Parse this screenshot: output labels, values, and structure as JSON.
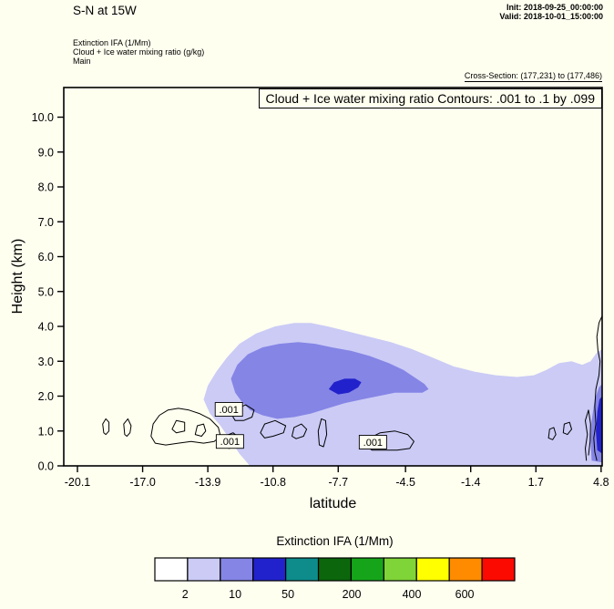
{
  "header": {
    "title": "S-N at 15W",
    "init_label": "Init: 2018-09-25_00:00:00",
    "valid_label": "Valid: 2018-10-01_15:00:00",
    "subtitle_lines": [
      "Extinction IFA  (1/Mm)",
      "Cloud + Ice water mixing ratio  (g/kg)",
      "Main"
    ],
    "cross_section": "Cross-Section: (177,231) to (177,486)"
  },
  "chart_data": {
    "type": "heatmap",
    "subtype": "filled-contour-vertical-cross-section",
    "title": "Cloud + Ice water mixing ratio Contours: .001 to .1 by .099",
    "xlabel": "latitude",
    "ylabel": "Height (km)",
    "xlim": [
      -20.75,
      4.85
    ],
    "ylim": [
      0,
      10.85
    ],
    "x_ticks": [
      -20.1,
      -17.0,
      -13.9,
      -10.8,
      -7.7,
      -4.5,
      -1.4,
      1.7,
      4.8
    ],
    "y_ticks": [
      0.0,
      1.0,
      2.0,
      3.0,
      4.0,
      5.0,
      6.0,
      7.0,
      8.0,
      9.0,
      10.0
    ],
    "grid": false,
    "background_color": "#fffff0",
    "contour_levels_gkg": [
      0.001,
      0.1
    ],
    "regions": [
      {
        "name": "extinction-2-10",
        "value_range": "2 to 10 (1/Mm)",
        "color": "#cbcbf6",
        "points": [
          [
            -11.9,
            0
          ],
          [
            -12.4,
            0.35
          ],
          [
            -12.9,
            0.8
          ],
          [
            -13.3,
            1.15
          ],
          [
            -13.8,
            1.5
          ],
          [
            -14.1,
            1.9
          ],
          [
            -13.9,
            2.3
          ],
          [
            -13.5,
            2.7
          ],
          [
            -13.0,
            3.1
          ],
          [
            -12.4,
            3.5
          ],
          [
            -11.6,
            3.8
          ],
          [
            -10.7,
            4.0
          ],
          [
            -9.8,
            4.1
          ],
          [
            -9.0,
            4.1
          ],
          [
            -8.2,
            4.0
          ],
          [
            -7.2,
            3.85
          ],
          [
            -6.2,
            3.7
          ],
          [
            -5.2,
            3.55
          ],
          [
            -4.2,
            3.35
          ],
          [
            -3.2,
            3.1
          ],
          [
            -2.2,
            2.85
          ],
          [
            -1.2,
            2.7
          ],
          [
            -0.2,
            2.6
          ],
          [
            0.8,
            2.55
          ],
          [
            1.6,
            2.6
          ],
          [
            2.2,
            2.75
          ],
          [
            2.8,
            2.95
          ],
          [
            3.4,
            3.0
          ],
          [
            3.9,
            2.9
          ],
          [
            4.3,
            3.0
          ],
          [
            4.6,
            3.25
          ],
          [
            4.85,
            3.35
          ],
          [
            4.85,
            0
          ]
        ]
      },
      {
        "name": "extinction-10-50",
        "value_range": "10 to 50 (1/Mm)",
        "color": "#8585e6",
        "points": [
          [
            -12.3,
            1.85
          ],
          [
            -12.6,
            2.1
          ],
          [
            -12.8,
            2.5
          ],
          [
            -12.5,
            2.9
          ],
          [
            -12.0,
            3.2
          ],
          [
            -11.3,
            3.4
          ],
          [
            -10.5,
            3.5
          ],
          [
            -9.6,
            3.55
          ],
          [
            -8.8,
            3.5
          ],
          [
            -8.0,
            3.4
          ],
          [
            -7.1,
            3.3
          ],
          [
            -6.2,
            3.15
          ],
          [
            -5.3,
            2.95
          ],
          [
            -4.6,
            2.75
          ],
          [
            -4.1,
            2.55
          ],
          [
            -3.6,
            2.35
          ],
          [
            -3.4,
            2.2
          ],
          [
            -3.7,
            2.1
          ],
          [
            -4.3,
            2.1
          ],
          [
            -5.0,
            2.1
          ],
          [
            -5.8,
            2.0
          ],
          [
            -6.6,
            1.9
          ],
          [
            -7.4,
            1.8
          ],
          [
            -8.2,
            1.65
          ],
          [
            -9.0,
            1.5
          ],
          [
            -9.8,
            1.4
          ],
          [
            -10.6,
            1.35
          ],
          [
            -11.3,
            1.45
          ],
          [
            -11.9,
            1.6
          ]
        ]
      },
      {
        "name": "extinction-50-200",
        "value_range": "50 to 200 (1/Mm)",
        "color": "#2222cc",
        "points": [
          [
            -8.15,
            2.2
          ],
          [
            -7.9,
            2.4
          ],
          [
            -7.4,
            2.5
          ],
          [
            -6.9,
            2.5
          ],
          [
            -6.6,
            2.4
          ],
          [
            -6.75,
            2.25
          ],
          [
            -7.2,
            2.1
          ],
          [
            -7.7,
            2.05
          ]
        ]
      },
      {
        "name": "extinction-10-50-right-edge",
        "value_range": "10 to 50 (1/Mm)",
        "color": "#8585e6",
        "points": [
          [
            4.35,
            0.15
          ],
          [
            4.3,
            0.7
          ],
          [
            4.35,
            1.3
          ],
          [
            4.5,
            1.9
          ],
          [
            4.7,
            2.25
          ],
          [
            4.85,
            2.35
          ],
          [
            4.85,
            0.1
          ]
        ]
      },
      {
        "name": "extinction-50-200-right-edge",
        "value_range": "50 to 200 (1/Mm)",
        "color": "#2222cc",
        "points": [
          [
            4.62,
            0.45
          ],
          [
            4.55,
            1.0
          ],
          [
            4.62,
            1.55
          ],
          [
            4.72,
            1.9
          ],
          [
            4.85,
            2.0
          ],
          [
            4.85,
            0.35
          ]
        ]
      }
    ],
    "contour_lines": [
      {
        "closed": true,
        "points": [
          [
            -18.85,
            0.95
          ],
          [
            -18.9,
            1.2
          ],
          [
            -18.75,
            1.35
          ],
          [
            -18.6,
            1.25
          ],
          [
            -18.6,
            1.0
          ],
          [
            -18.75,
            0.9
          ]
        ]
      },
      {
        "closed": true,
        "points": [
          [
            -17.85,
            0.9
          ],
          [
            -17.9,
            1.2
          ],
          [
            -17.7,
            1.35
          ],
          [
            -17.55,
            1.15
          ],
          [
            -17.6,
            0.95
          ],
          [
            -17.75,
            0.85
          ]
        ]
      },
      {
        "closed": true,
        "points": [
          [
            -16.6,
            0.85
          ],
          [
            -16.5,
            1.2
          ],
          [
            -16.2,
            1.45
          ],
          [
            -15.8,
            1.6
          ],
          [
            -15.3,
            1.65
          ],
          [
            -14.8,
            1.6
          ],
          [
            -14.3,
            1.5
          ],
          [
            -13.8,
            1.35
          ],
          [
            -13.4,
            1.1
          ],
          [
            -13.3,
            0.85
          ],
          [
            -13.6,
            0.7
          ],
          [
            -14.1,
            0.65
          ],
          [
            -14.7,
            0.7
          ],
          [
            -15.3,
            0.65
          ],
          [
            -15.9,
            0.6
          ],
          [
            -16.4,
            0.65
          ]
        ]
      },
      {
        "closed": true,
        "points": [
          [
            -15.6,
            1.05
          ],
          [
            -15.4,
            1.3
          ],
          [
            -15.0,
            1.25
          ],
          [
            -15.0,
            1.0
          ],
          [
            -15.4,
            0.95
          ]
        ]
      },
      {
        "closed": true,
        "points": [
          [
            -14.5,
            0.9
          ],
          [
            -14.4,
            1.15
          ],
          [
            -14.1,
            1.2
          ],
          [
            -14.0,
            1.0
          ],
          [
            -14.2,
            0.85
          ]
        ]
      },
      {
        "closed": true,
        "points": [
          [
            -12.7,
            1.4
          ],
          [
            -12.5,
            1.65
          ],
          [
            -12.1,
            1.75
          ],
          [
            -11.7,
            1.6
          ],
          [
            -11.8,
            1.4
          ],
          [
            -12.2,
            1.3
          ],
          [
            -12.6,
            1.3
          ]
        ]
      },
      {
        "closed": true,
        "points": [
          [
            -13.2,
            0.6
          ],
          [
            -13.1,
            0.85
          ],
          [
            -12.7,
            0.95
          ],
          [
            -12.4,
            0.8
          ],
          [
            -12.5,
            0.55
          ],
          [
            -12.9,
            0.5
          ]
        ]
      },
      {
        "closed": true,
        "points": [
          [
            -11.4,
            0.95
          ],
          [
            -11.2,
            1.2
          ],
          [
            -10.7,
            1.3
          ],
          [
            -10.2,
            1.15
          ],
          [
            -10.3,
            0.95
          ],
          [
            -10.8,
            0.85
          ],
          [
            -11.2,
            0.8
          ]
        ]
      },
      {
        "closed": true,
        "points": [
          [
            -9.9,
            0.85
          ],
          [
            -9.8,
            1.1
          ],
          [
            -9.45,
            1.2
          ],
          [
            -9.2,
            1.05
          ],
          [
            -9.35,
            0.85
          ],
          [
            -9.7,
            0.78
          ]
        ]
      },
      {
        "closed": true,
        "points": [
          [
            -8.6,
            0.6
          ],
          [
            -8.65,
            1.0
          ],
          [
            -8.5,
            1.35
          ],
          [
            -8.3,
            1.3
          ],
          [
            -8.25,
            0.9
          ],
          [
            -8.4,
            0.55
          ]
        ]
      },
      {
        "closed": true,
        "points": [
          [
            -6.3,
            0.55
          ],
          [
            -6.2,
            0.8
          ],
          [
            -5.7,
            0.95
          ],
          [
            -5.0,
            1.0
          ],
          [
            -4.4,
            0.9
          ],
          [
            -4.1,
            0.7
          ],
          [
            -4.3,
            0.5
          ],
          [
            -4.9,
            0.45
          ],
          [
            -5.6,
            0.45
          ],
          [
            -6.1,
            0.45
          ]
        ]
      },
      {
        "closed": true,
        "points": [
          [
            2.3,
            0.8
          ],
          [
            2.35,
            1.05
          ],
          [
            2.55,
            1.1
          ],
          [
            2.65,
            0.9
          ],
          [
            2.5,
            0.75
          ]
        ]
      },
      {
        "closed": true,
        "points": [
          [
            3.0,
            0.95
          ],
          [
            3.05,
            1.2
          ],
          [
            3.3,
            1.25
          ],
          [
            3.4,
            1.05
          ],
          [
            3.2,
            0.9
          ]
        ]
      },
      {
        "closed": false,
        "points": [
          [
            4.85,
            4.3
          ],
          [
            4.7,
            4.1
          ],
          [
            4.6,
            3.7
          ],
          [
            4.65,
            3.3
          ],
          [
            4.75,
            3.0
          ],
          [
            4.7,
            2.6
          ],
          [
            4.55,
            2.2
          ],
          [
            4.5,
            1.7
          ],
          [
            4.55,
            1.2
          ],
          [
            4.45,
            0.8
          ],
          [
            4.5,
            0.4
          ],
          [
            4.6,
            0.15
          ]
        ]
      },
      {
        "closed": false,
        "points": [
          [
            4.1,
            0.15
          ],
          [
            4.05,
            0.5
          ],
          [
            4.15,
            0.9
          ],
          [
            4.05,
            1.3
          ],
          [
            4.2,
            1.6
          ],
          [
            4.3,
            1.2
          ],
          [
            4.28,
            0.7
          ],
          [
            4.2,
            0.3
          ]
        ]
      }
    ],
    "contour_labels": [
      {
        "text": ".001",
        "lat": -12.9,
        "km": 1.62
      },
      {
        "text": ".001",
        "lat": -12.85,
        "km": 0.7
      },
      {
        "text": ".001",
        "lat": -6.05,
        "km": 0.68
      }
    ],
    "colorbar": {
      "title": "Extinction IFA  (1/Mm)",
      "colors": [
        "#ffffff",
        "#cbcbf6",
        "#8585e6",
        "#2222cc",
        "#0e8c8c",
        "#0c660c",
        "#16a51a",
        "#7fd437",
        "#ffff00",
        "#ff8c00",
        "#fa0a00"
      ],
      "tick_labels": [
        "2",
        "10",
        "50",
        "200",
        "400",
        "600"
      ],
      "tick_positions": [
        0.084,
        0.223,
        0.37,
        0.547,
        0.714,
        0.861
      ]
    }
  }
}
